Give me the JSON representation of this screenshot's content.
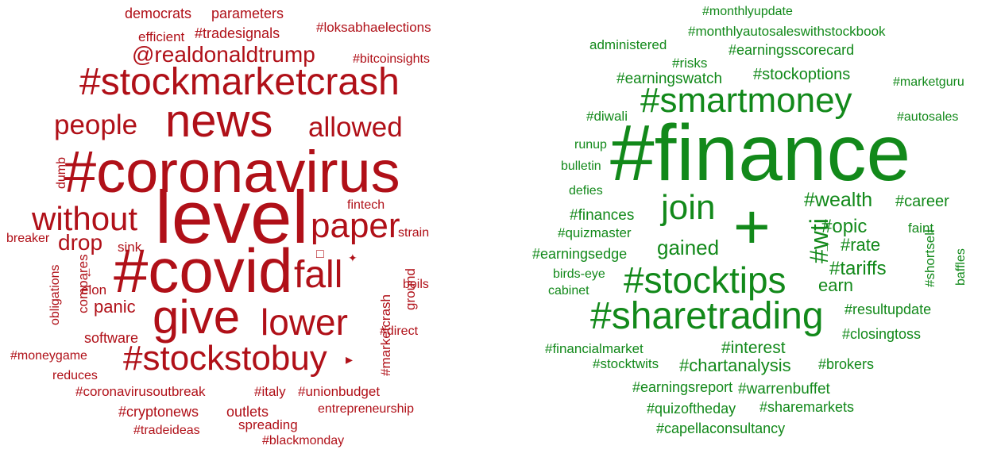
{
  "colors": {
    "red_cloud": "#b01018",
    "green_cloud": "#12891a"
  },
  "red_cloud": {
    "words": [
      "democrats",
      "parameters",
      "efficient",
      "#tradesignals",
      "#loksabhaelections",
      "@realdonaldtrump",
      "#bitcoinsights",
      "#stockmarketcrash",
      "people",
      "news",
      "allowed",
      "#coronavirus",
      "dumb",
      "without",
      "level",
      "fintech",
      "paper",
      "strain",
      "breaker",
      "drop",
      "sink",
      "obligations",
      "compares",
      "↓",
      "elon",
      "#covid",
      "□",
      "✦",
      "fall",
      "#marketcrash",
      "ground",
      "boils",
      "panic",
      "software",
      "give",
      "lower",
      "#direct",
      "#moneygame",
      "#stockstobuy",
      "▸",
      "reduces",
      "#coronavirusoutbreak",
      "#italy",
      "#unionbudget",
      "#cryptonews",
      "outlets",
      "entrepreneurship",
      "spreading",
      "#tradeideas",
      "#blackmonday"
    ]
  },
  "green_cloud": {
    "words": [
      "#monthlyupdate",
      "#monthlyautosaleswithstockbook",
      "administered",
      "#earningsscorecard",
      "#risks",
      "#earningswatch",
      "#stockoptions",
      "#marketguru",
      "#smartmoney",
      "#diwali",
      "#autosales",
      "runup",
      "#finance",
      "bulletin",
      "defies",
      "join",
      "+",
      "#wealth",
      "#career",
      "#finances",
      "#wti",
      "↑",
      "#opic",
      "#shortsell",
      "#quizmaster",
      "faint",
      "#rate",
      "baffles",
      "#earningsedge",
      "gained",
      "#tariffs",
      "birds-eye",
      "#stocktips",
      "earn",
      "cabinet",
      "#resultupdate",
      "#sharetrading",
      "#closingtoss",
      "#financialmarket",
      "#interest",
      "#stocktwits",
      "#chartanalysis",
      "#brokers",
      "#earningsreport",
      "#warrenbuffet",
      "#quizoftheday",
      "#sharemarkets",
      "#capellaconsultancy"
    ]
  }
}
